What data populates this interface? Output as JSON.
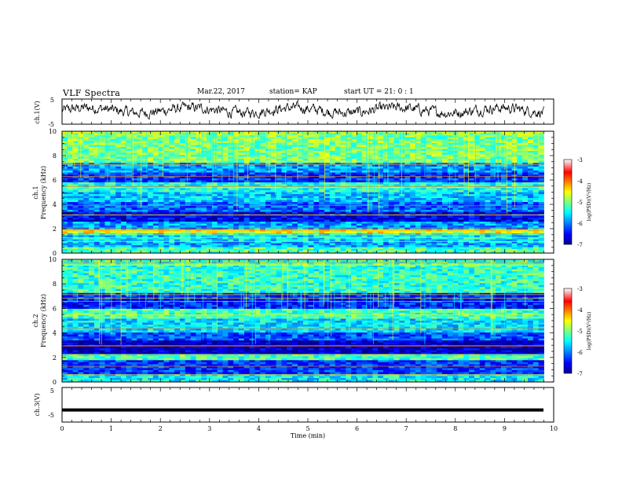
{
  "header": {
    "title": "VLF Spectra",
    "date": "Mar.22, 2017",
    "station": "station= KAP",
    "start": "start  UT =  21: 0  : 1"
  },
  "chart_data": [
    {
      "type": "line",
      "name": "ch1-waveform",
      "ylabel": "ch.1(V)",
      "xlim": [
        0,
        10
      ],
      "ylim": [
        -5,
        5
      ],
      "yticks": [
        "5",
        "-5"
      ],
      "note": "noisy voltage trace fluctuating roughly between -2 and 3 V across 0–9.8 min"
    },
    {
      "type": "heatmap",
      "name": "ch1-spectrogram",
      "ylabel_top": "ch.1",
      "ylabel": "Frequency (kHz)",
      "xlim": [
        0,
        9.8
      ],
      "ylim": [
        0,
        10
      ],
      "yticks": [
        "0",
        "2",
        "4",
        "6",
        "8",
        "10"
      ],
      "colorbar": {
        "label": "log(PSD)(V²/Hz)",
        "range": [
          -7,
          -3
        ],
        "ticks": [
          "-3",
          "-4",
          "-5",
          "-6",
          "-7"
        ]
      },
      "bands_khz": [
        {
          "from": 0,
          "to": 0.5,
          "level": -5.2
        },
        {
          "from": 0.5,
          "to": 1.0,
          "level": -5.8
        },
        {
          "from": 1.0,
          "to": 1.6,
          "level": -5.6
        },
        {
          "from": 1.6,
          "to": 2.0,
          "level": -4.6
        },
        {
          "from": 2.0,
          "to": 2.6,
          "level": -5.9
        },
        {
          "from": 2.6,
          "to": 3.4,
          "level": -6.6
        },
        {
          "from": 3.4,
          "to": 4.2,
          "level": -6.1
        },
        {
          "from": 4.2,
          "to": 5.0,
          "level": -5.7
        },
        {
          "from": 5.0,
          "to": 5.8,
          "level": -5.4
        },
        {
          "from": 5.8,
          "to": 6.6,
          "level": -6.3
        },
        {
          "from": 6.6,
          "to": 7.4,
          "level": -5.9
        },
        {
          "from": 7.4,
          "to": 10,
          "level": -5.0
        }
      ]
    },
    {
      "type": "heatmap",
      "name": "ch2-spectrogram",
      "ylabel_top": "ch.2",
      "ylabel": "Frequency (kHz)",
      "xlim": [
        0,
        9.8
      ],
      "ylim": [
        0,
        10
      ],
      "yticks": [
        "0",
        "2",
        "4",
        "6",
        "8",
        "10"
      ],
      "colorbar": {
        "label": "log(PSD)(V²/Hz)",
        "range": [
          -7,
          -3
        ],
        "ticks": [
          "-3",
          "-4",
          "-5",
          "-6",
          "-7"
        ]
      },
      "bands_khz": [
        {
          "from": 0,
          "to": 0.6,
          "level": -5.5
        },
        {
          "from": 0.6,
          "to": 1.8,
          "level": -6.3
        },
        {
          "from": 1.8,
          "to": 2.2,
          "level": -5.2
        },
        {
          "from": 2.2,
          "to": 3.4,
          "level": -6.8
        },
        {
          "from": 3.4,
          "to": 4.0,
          "level": -6.2
        },
        {
          "from": 4.0,
          "to": 5.2,
          "level": -5.6
        },
        {
          "from": 5.2,
          "to": 6.0,
          "level": -5.2
        },
        {
          "from": 6.0,
          "to": 7.2,
          "level": -6.4
        },
        {
          "from": 7.2,
          "to": 10,
          "level": -5.3
        }
      ]
    },
    {
      "type": "line",
      "name": "ch3-waveform",
      "ylabel": "ch.3(V)",
      "xlabel": "Time (min)",
      "xlim": [
        0,
        10
      ],
      "ylim": [
        -5,
        5
      ],
      "yticks": [
        "5",
        "-5"
      ],
      "xticks": [
        "0",
        "1",
        "2",
        "3",
        "4",
        "5",
        "6",
        "7",
        "8",
        "9",
        "10"
      ],
      "constant_value": -1.5
    }
  ],
  "colors": {
    "trace": "#000000",
    "colormap": [
      "#00008f",
      "#0000ff",
      "#00ffff",
      "#7fff7f",
      "#ffff00",
      "#ff0000",
      "#ffffff"
    ]
  }
}
